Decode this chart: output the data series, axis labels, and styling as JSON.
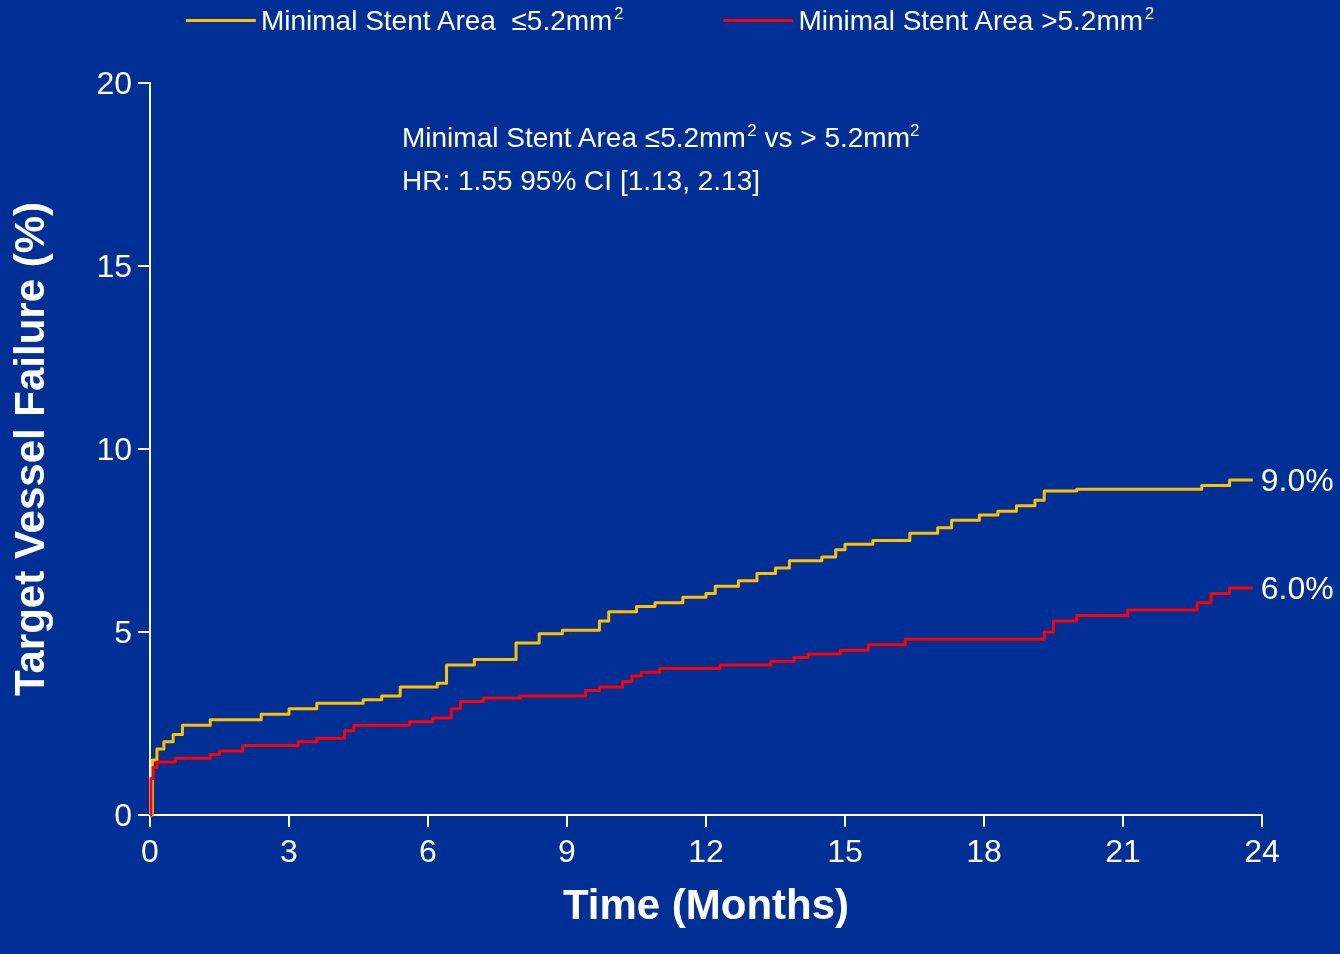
{
  "chart_data": {
    "type": "step",
    "xlabel": "Time (Months)",
    "ylabel": "Target Vessel Failure (%)",
    "xlim": [
      0,
      24
    ],
    "xticks": [
      0,
      3,
      6,
      9,
      12,
      15,
      18,
      21,
      24
    ],
    "ylim": [
      0,
      20
    ],
    "yticks": [
      0,
      5,
      10,
      15,
      20
    ],
    "grid": false,
    "legend": "top",
    "marker": "none",
    "line_style": "solid",
    "annotations": [
      "Minimal Stent Area ≤5.2mm$^{2}$ vs > 5.2mm$^{2}$",
      "HR: 1.55 95% CI [1.13, 2.13]",
      {
        "text": "9.0%",
        "x": 23.8,
        "y": 9.15
      },
      {
        "text": "6.0%",
        "x": 23.8,
        "y": 6.2
      }
    ],
    "series": [
      {
        "name": "Minimal Stent Area  ≤5.2mm$^{2}$",
        "color": "#ffc000",
        "x": [
          0,
          0.05,
          0.15,
          0.3,
          0.5,
          0.7,
          1.3,
          2.4,
          3.0,
          3.6,
          4.6,
          5.0,
          5.4,
          6.2,
          6.4,
          7.0,
          7.9,
          8.4,
          8.9,
          9.7,
          9.9,
          10.5,
          10.9,
          11.5,
          12.0,
          12.2,
          12.7,
          13.1,
          13.5,
          13.8,
          14.5,
          14.8,
          15.0,
          15.6,
          16.4,
          17.0,
          17.3,
          17.9,
          18.3,
          18.7,
          19.1,
          19.3,
          20.0,
          22.7,
          23.3,
          23.8
        ],
        "values": [
          0,
          1.5,
          1.8,
          2.0,
          2.2,
          2.45,
          2.6,
          2.75,
          2.9,
          3.05,
          3.15,
          3.25,
          3.5,
          3.6,
          4.1,
          4.25,
          4.7,
          4.95,
          5.05,
          5.3,
          5.55,
          5.7,
          5.8,
          5.95,
          6.05,
          6.25,
          6.4,
          6.6,
          6.75,
          6.95,
          7.05,
          7.25,
          7.4,
          7.5,
          7.7,
          7.85,
          8.05,
          8.2,
          8.3,
          8.45,
          8.6,
          8.85,
          8.9,
          9.0,
          9.15,
          9.15
        ]
      },
      {
        "name": "Minimal Stent Area >5.2mm$^{2}$",
        "color": "#ff0000",
        "x": [
          0,
          0.02,
          0.07,
          0.15,
          0.55,
          1.3,
          1.5,
          2.0,
          3.2,
          3.6,
          4.2,
          4.4,
          5.6,
          6.1,
          6.5,
          6.7,
          7.2,
          8.0,
          9.4,
          9.7,
          10.2,
          10.4,
          10.6,
          11.0,
          12.3,
          13.4,
          13.9,
          14.2,
          14.9,
          15.5,
          16.3,
          19.3,
          19.5,
          20.0,
          21.1,
          22.6,
          22.9,
          23.3,
          23.8
        ],
        "values": [
          0,
          1.0,
          1.3,
          1.45,
          1.55,
          1.65,
          1.75,
          1.9,
          2.0,
          2.1,
          2.3,
          2.45,
          2.55,
          2.65,
          2.9,
          3.1,
          3.2,
          3.25,
          3.4,
          3.5,
          3.65,
          3.8,
          3.9,
          4.0,
          4.1,
          4.2,
          4.3,
          4.4,
          4.5,
          4.65,
          4.8,
          5.0,
          5.3,
          5.45,
          5.6,
          5.8,
          6.05,
          6.2,
          6.2
        ]
      }
    ]
  }
}
